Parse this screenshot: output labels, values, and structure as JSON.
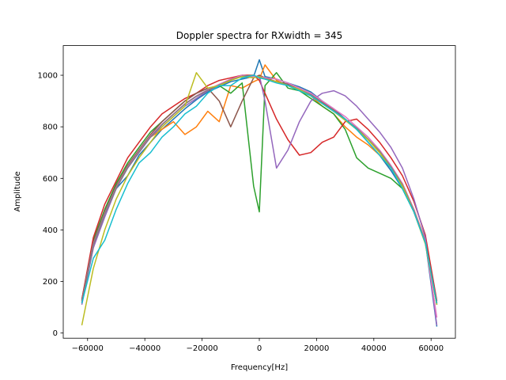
{
  "chart_data": {
    "type": "line",
    "title": "Doppler spectra for RXwidth = 345",
    "xlabel": "Frequency[Hz]",
    "ylabel": "Amplitude",
    "xlim": [
      -68500,
      68500
    ],
    "ylim": [
      -20,
      1115
    ],
    "xticks": [
      -60000,
      -40000,
      -20000,
      0,
      20000,
      40000,
      60000
    ],
    "yticks": [
      0,
      200,
      400,
      600,
      800,
      1000
    ],
    "grid": false,
    "legend": "none",
    "colors": [
      "#1f77b4",
      "#ff7f0e",
      "#2ca02c",
      "#d62728",
      "#9467bd",
      "#8c564b",
      "#e377c2",
      "#7f7f7f",
      "#bcbd22",
      "#17becf"
    ],
    "x": [
      -62000,
      -58000,
      -54000,
      -50000,
      -46000,
      -42000,
      -38000,
      -34000,
      -30000,
      -26000,
      -22000,
      -18000,
      -14000,
      -10000,
      -6000,
      -2000,
      0,
      2000,
      6000,
      10000,
      14000,
      18000,
      22000,
      26000,
      30000,
      34000,
      38000,
      42000,
      46000,
      50000,
      54000,
      58000,
      62000
    ],
    "series": [
      {
        "values": [
          130,
          355,
          470,
          560,
          610,
          690,
          740,
          790,
          830,
          870,
          905,
          935,
          955,
          975,
          985,
          995,
          1060,
          995,
          985,
          970,
          955,
          935,
          900,
          870,
          830,
          790,
          740,
          690,
          630,
          560,
          470,
          355,
          25
        ]
      },
      {
        "values": [
          120,
          330,
          470,
          570,
          650,
          710,
          760,
          790,
          820,
          770,
          800,
          860,
          820,
          960,
          950,
          975,
          985,
          1040,
          980,
          960,
          940,
          920,
          880,
          850,
          800,
          760,
          730,
          690,
          640,
          580,
          480,
          360,
          120
        ]
      },
      {
        "values": [
          125,
          360,
          480,
          580,
          660,
          720,
          780,
          820,
          860,
          900,
          930,
          950,
          960,
          930,
          970,
          570,
          470,
          960,
          1010,
          950,
          940,
          910,
          880,
          850,
          790,
          680,
          640,
          620,
          600,
          560,
          470,
          350,
          110
        ]
      },
      {
        "values": [
          130,
          370,
          500,
          590,
          680,
          740,
          800,
          850,
          880,
          910,
          930,
          960,
          980,
          990,
          1000,
          1000,
          980,
          930,
          830,
          750,
          690,
          700,
          740,
          760,
          820,
          830,
          790,
          740,
          680,
          610,
          510,
          380,
          125
        ]
      },
      {
        "values": [
          110,
          330,
          450,
          560,
          640,
          700,
          760,
          800,
          840,
          880,
          910,
          940,
          960,
          980,
          1000,
          990,
          1000,
          900,
          640,
          710,
          820,
          900,
          930,
          940,
          920,
          880,
          830,
          780,
          720,
          640,
          520,
          370,
          30
        ]
      },
      {
        "values": [
          125,
          350,
          470,
          570,
          650,
          710,
          770,
          820,
          860,
          900,
          930,
          950,
          900,
          800,
          900,
          990,
          1000,
          990,
          975,
          965,
          945,
          925,
          895,
          865,
          830,
          790,
          750,
          700,
          640,
          570,
          470,
          350,
          115
        ]
      },
      {
        "values": [
          120,
          345,
          465,
          565,
          645,
          705,
          765,
          810,
          850,
          890,
          920,
          945,
          965,
          985,
          1000,
          995,
          995,
          990,
          985,
          970,
          950,
          930,
          900,
          870,
          840,
          800,
          760,
          710,
          650,
          580,
          480,
          355,
          60
        ]
      },
      {
        "values": [
          118,
          342,
          462,
          562,
          642,
          702,
          762,
          808,
          848,
          888,
          918,
          942,
          962,
          982,
          996,
          1000,
          990,
          985,
          975,
          962,
          945,
          925,
          892,
          862,
          830,
          795,
          752,
          705,
          645,
          575,
          475,
          352,
          112
        ]
      },
      {
        "values": [
          30,
          250,
          400,
          520,
          610,
          680,
          740,
          800,
          840,
          880,
          1010,
          950,
          960,
          980,
          995,
          990,
          995,
          985,
          975,
          960,
          945,
          920,
          890,
          860,
          825,
          790,
          750,
          700,
          640,
          570,
          470,
          345,
          110
        ]
      },
      {
        "values": [
          115,
          290,
          360,
          480,
          580,
          660,
          700,
          760,
          800,
          850,
          880,
          930,
          960,
          960,
          990,
          1000,
          990,
          985,
          970,
          960,
          940,
          920,
          890,
          860,
          830,
          790,
          740,
          690,
          640,
          560,
          470,
          350,
          115
        ]
      }
    ]
  }
}
